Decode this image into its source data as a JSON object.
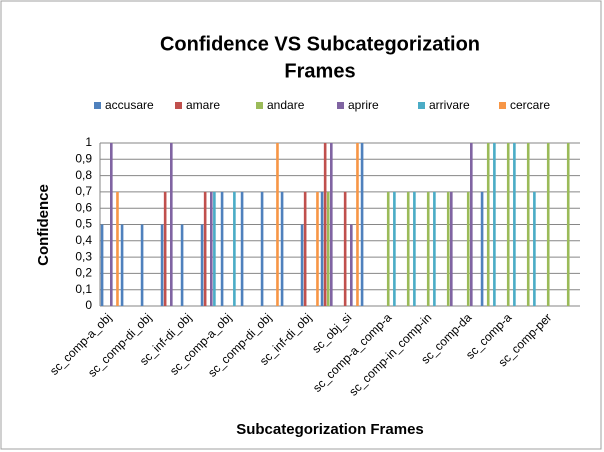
{
  "chart_data": {
    "type": "bar",
    "title": [
      "Confidence VS Subcategorization",
      "Frames"
    ],
    "x_label": "Subcategorization Frames",
    "y_label": "Confidence",
    "categories": [
      "sc_comp-a_obj",
      null,
      "sc_comp-di_obj",
      null,
      "sc_inf-di_obj",
      null,
      "sc_comp-a_obj",
      null,
      "sc_comp-di_obj",
      null,
      "sc_inf-di_obj",
      null,
      "sc_obj_si",
      null,
      "sc_comp-a_comp-a",
      null,
      "sc_comp-in_comp-in",
      null,
      "sc_comp-da",
      null,
      "sc_comp-a",
      null,
      "sc_comp-per",
      null
    ],
    "series": [
      {
        "name": "accusare",
        "color": "#4f81bd",
        "values": [
          0.5,
          0.5,
          0.5,
          0.5,
          0.5,
          0.5,
          0.7,
          0.7,
          0.7,
          0.7,
          0.5,
          0.7,
          null,
          1,
          null,
          null,
          null,
          null,
          null,
          0.7,
          null,
          null,
          null,
          null
        ]
      },
      {
        "name": "amare",
        "color": "#c0504d",
        "values": [
          null,
          null,
          null,
          0.7,
          null,
          0.7,
          null,
          null,
          null,
          null,
          0.7,
          1,
          0.7,
          null,
          null,
          null,
          null,
          null,
          null,
          null,
          null,
          null,
          null,
          null
        ]
      },
      {
        "name": "andare",
        "color": "#9bbb59",
        "values": [
          null,
          null,
          null,
          null,
          null,
          null,
          null,
          null,
          null,
          null,
          null,
          0.7,
          null,
          null,
          0.7,
          0.7,
          0.7,
          0.7,
          0.7,
          1,
          1,
          1,
          1,
          1
        ]
      },
      {
        "name": "aprire",
        "color": "#8064a2",
        "values": [
          1,
          null,
          null,
          1,
          null,
          0.7,
          null,
          null,
          null,
          null,
          null,
          1,
          0.5,
          null,
          null,
          null,
          null,
          0.7,
          1,
          null,
          null,
          null,
          null,
          null
        ]
      },
      {
        "name": "arrivare",
        "color": "#4bacc6",
        "values": [
          null,
          null,
          null,
          null,
          null,
          0.7,
          0.7,
          null,
          null,
          null,
          null,
          null,
          null,
          null,
          0.7,
          0.7,
          0.7,
          null,
          null,
          1,
          1,
          0.7,
          null,
          null
        ]
      },
      {
        "name": "cercare",
        "color": "#f79646",
        "values": [
          0.7,
          null,
          null,
          null,
          null,
          null,
          null,
          null,
          1,
          null,
          0.7,
          null,
          1,
          null,
          null,
          null,
          null,
          null,
          null,
          null,
          null,
          null,
          null,
          null
        ]
      }
    ],
    "ylim": [
      0,
      1
    ],
    "yticks": [
      0,
      {
        "value": 0.1,
        "label": "0,1"
      },
      {
        "value": 0.2,
        "label": "0,2"
      },
      {
        "value": 0.3,
        "label": "0,3"
      },
      {
        "value": 0.4,
        "label": "0,4"
      },
      {
        "value": 0.5,
        "label": "0,5"
      },
      {
        "value": 0.6,
        "label": "0,6"
      },
      {
        "value": 0.7,
        "label": "0,7"
      },
      {
        "value": 0.8,
        "label": "0,8"
      },
      {
        "value": 0.9,
        "label": "0,9"
      },
      1
    ],
    "grid": true,
    "legend": "top"
  }
}
